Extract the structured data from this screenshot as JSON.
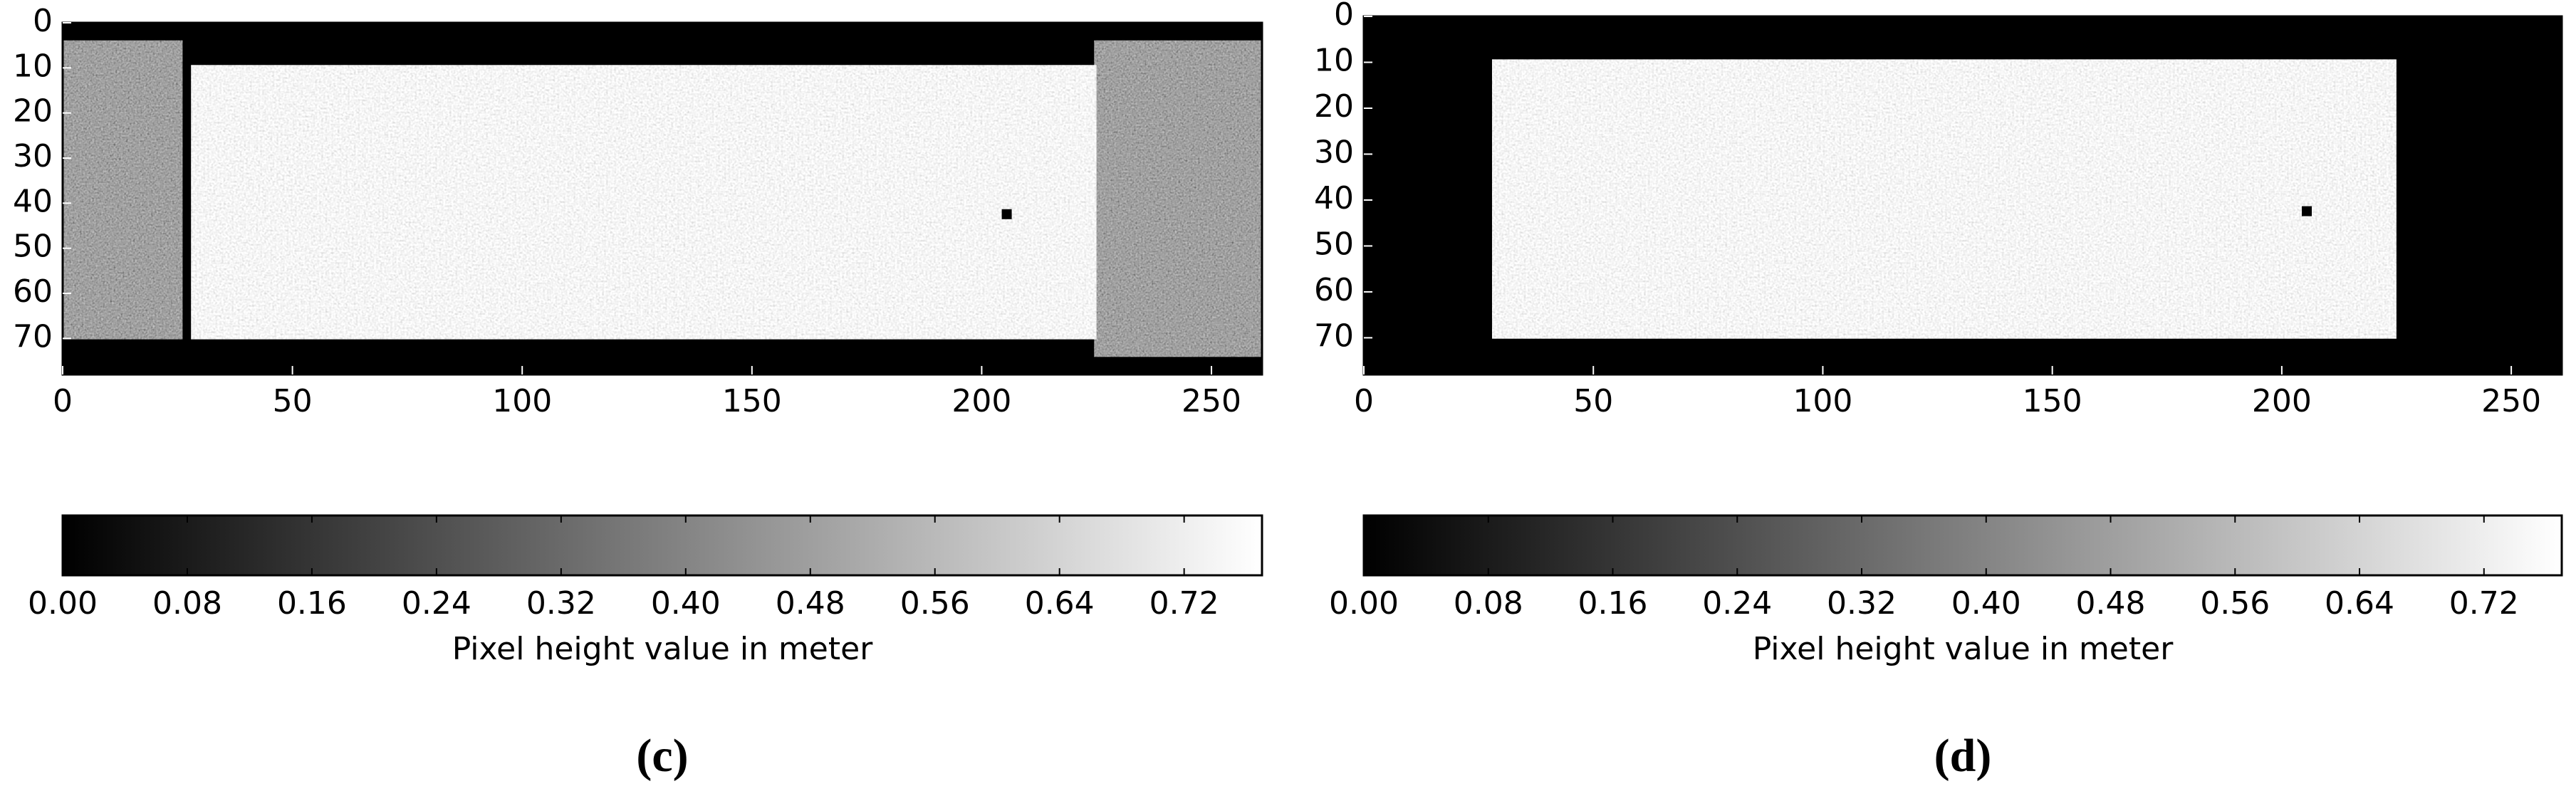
{
  "chart_data": [
    {
      "type": "heatmap",
      "caption": "(c)",
      "colorbar_label": "Pixel height value in meter",
      "colormap": [
        "#000000",
        "#ffffff"
      ],
      "xlim": [
        0,
        261
      ],
      "ylim": [
        78,
        0
      ],
      "xticks": [
        0,
        50,
        100,
        150,
        200,
        250
      ],
      "yticks": [
        0,
        10,
        20,
        30,
        40,
        50,
        60,
        70
      ],
      "clim": [
        0,
        0.77
      ],
      "cticks": [
        {
          "value": 0,
          "label": "0.00"
        },
        {
          "value": 0.08,
          "label": "0.08"
        },
        {
          "value": 0.16,
          "label": "0.16"
        },
        {
          "value": 0.24,
          "label": "0.24"
        },
        {
          "value": 0.32,
          "label": "0.32"
        },
        {
          "value": 0.4,
          "label": "0.40"
        },
        {
          "value": 0.48,
          "label": "0.48"
        },
        {
          "value": 0.56,
          "label": "0.56"
        },
        {
          "value": 0.64,
          "label": "0.64"
        },
        {
          "value": 0.72,
          "label": "0.72"
        }
      ]
    },
    {
      "type": "heatmap",
      "caption": "(d)",
      "colorbar_label": "Pixel height value in meter",
      "colormap": [
        "#000000",
        "#ffffff"
      ],
      "xlim": [
        0,
        261
      ],
      "ylim": [
        78,
        0
      ],
      "xticks": [
        0,
        50,
        100,
        150,
        200,
        250
      ],
      "yticks": [
        0,
        10,
        20,
        30,
        40,
        50,
        60,
        70
      ],
      "clim": [
        0,
        0.77
      ],
      "cticks": [
        {
          "value": 0,
          "label": "0.00"
        },
        {
          "value": 0.08,
          "label": "0.08"
        },
        {
          "value": 0.16,
          "label": "0.16"
        },
        {
          "value": 0.24,
          "label": "0.24"
        },
        {
          "value": 0.32,
          "label": "0.32"
        },
        {
          "value": 0.4,
          "label": "0.40"
        },
        {
          "value": 0.48,
          "label": "0.48"
        },
        {
          "value": 0.56,
          "label": "0.56"
        },
        {
          "value": 0.64,
          "label": "0.64"
        },
        {
          "value": 0.72,
          "label": "0.72"
        }
      ]
    }
  ]
}
